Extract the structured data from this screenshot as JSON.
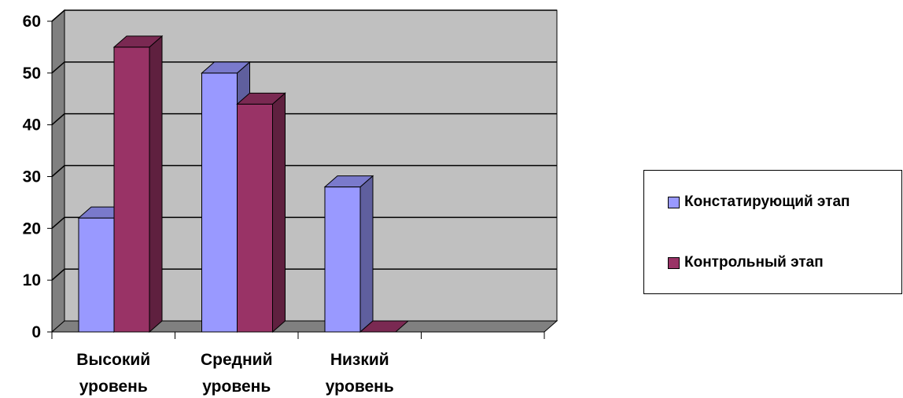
{
  "chart_data": {
    "type": "bar",
    "title": "",
    "xlabel": "",
    "ylabel": "",
    "ylim": [
      0,
      60
    ],
    "yticks": [
      "0",
      "10",
      "20",
      "30",
      "40",
      "50",
      "60"
    ],
    "categories": [
      [
        "Высокий",
        "уровень"
      ],
      [
        "Средний",
        "уровень"
      ],
      [
        "Низкий",
        "уровень"
      ],
      [
        "",
        ""
      ]
    ],
    "series": [
      {
        "name": "Констатирующий этап",
        "values": [
          22,
          50,
          28,
          null
        ],
        "color": "#9999ff"
      },
      {
        "name": "Контрольный этап",
        "values": [
          55,
          44,
          0,
          null
        ],
        "color": "#993366"
      }
    ],
    "grid": true,
    "style": "3d-clustered-column",
    "wall_color": "#c0c0c0",
    "legend_position": "right"
  },
  "legend": {
    "items": [
      {
        "label": "Констатирующий этап"
      },
      {
        "label": "Контрольный этап"
      }
    ]
  }
}
